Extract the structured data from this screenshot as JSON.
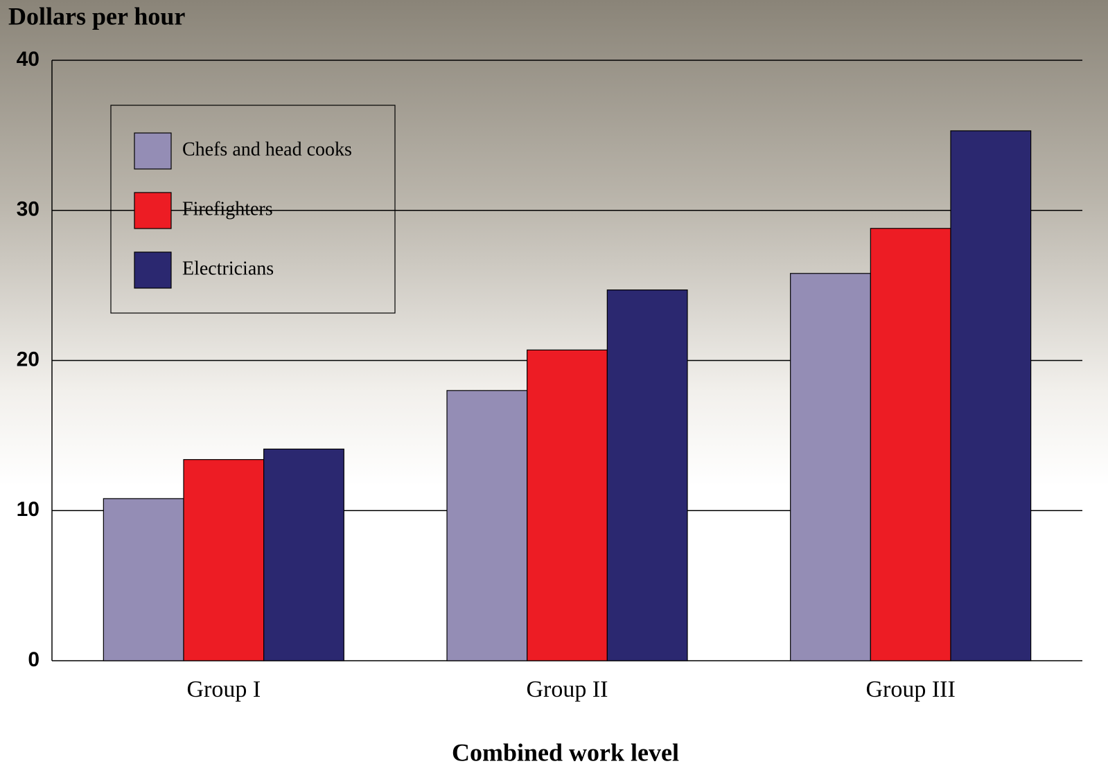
{
  "chart_data": {
    "type": "bar",
    "y_label": "Dollars per hour",
    "x_label": "Combined work level",
    "categories": [
      "Group I",
      "Group II",
      "Group III"
    ],
    "series": [
      {
        "name": "Chefs and head cooks",
        "color": "#948db5",
        "values": [
          10.8,
          18.0,
          25.8
        ]
      },
      {
        "name": "Firefighters",
        "color": "#ed1c24",
        "values": [
          13.4,
          20.7,
          28.8
        ]
      },
      {
        "name": "Electricians",
        "color": "#2b2870",
        "values": [
          14.1,
          24.7,
          35.3
        ]
      }
    ],
    "ylim": [
      0,
      40
    ],
    "yticks": [
      0,
      10,
      20,
      30,
      40
    ],
    "grid": true,
    "legend": "upper left"
  }
}
